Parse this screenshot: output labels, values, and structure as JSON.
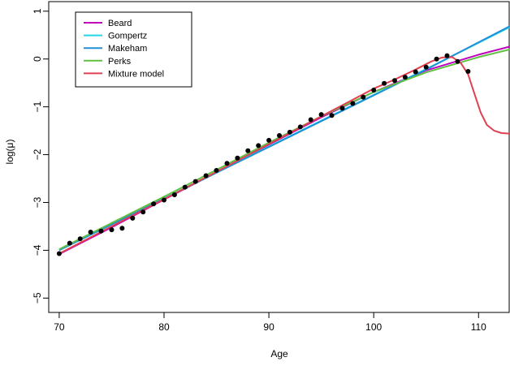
{
  "chart_data": {
    "type": "line",
    "xlabel": "Age",
    "ylabel": "log(μ)",
    "xlim": [
      69,
      113
    ],
    "ylim": [
      -5.3,
      1.2
    ],
    "x_ticks": [
      70,
      80,
      90,
      100,
      110
    ],
    "y_ticks": [
      -5,
      -4,
      -3,
      -2,
      -1,
      0,
      1
    ],
    "legend_position": "top-left",
    "grid": false,
    "observed_points": [
      [
        70,
        -4.07
      ],
      [
        71,
        -3.85
      ],
      [
        72,
        -3.76
      ],
      [
        73,
        -3.62
      ],
      [
        74,
        -3.6
      ],
      [
        75,
        -3.57
      ],
      [
        76,
        -3.54
      ],
      [
        77,
        -3.33
      ],
      [
        78,
        -3.2
      ],
      [
        79,
        -3.03
      ],
      [
        80,
        -2.95
      ],
      [
        81,
        -2.84
      ],
      [
        82,
        -2.68
      ],
      [
        83,
        -2.56
      ],
      [
        84,
        -2.44
      ],
      [
        85,
        -2.33
      ],
      [
        86,
        -2.18
      ],
      [
        87,
        -2.07
      ],
      [
        88,
        -1.92
      ],
      [
        89,
        -1.81
      ],
      [
        90,
        -1.7
      ],
      [
        91,
        -1.6
      ],
      [
        92,
        -1.53
      ],
      [
        93,
        -1.42
      ],
      [
        94,
        -1.27
      ],
      [
        95,
        -1.16
      ],
      [
        96,
        -1.18
      ],
      [
        97,
        -1.03
      ],
      [
        98,
        -0.93
      ],
      [
        99,
        -0.8
      ],
      [
        100,
        -0.65
      ],
      [
        101,
        -0.51
      ],
      [
        102,
        -0.45
      ],
      [
        103,
        -0.38
      ],
      [
        104,
        -0.27
      ],
      [
        105,
        -0.17
      ],
      [
        106,
        0.0
      ],
      [
        107,
        0.07
      ],
      [
        108,
        -0.05
      ],
      [
        109,
        -0.26
      ]
    ],
    "series": [
      {
        "name": "Beard",
        "color": "#c000c0",
        "x": [
          70,
          75,
          80,
          85,
          90,
          95,
          100,
          105,
          110,
          113
        ],
        "y": [
          -4.08,
          -3.52,
          -2.94,
          -2.37,
          -1.79,
          -1.22,
          -0.69,
          -0.24,
          0.09,
          0.26
        ]
      },
      {
        "name": "Gompertz",
        "color": "#20d8e8",
        "x": [
          70,
          75,
          80,
          85,
          90,
          95,
          100,
          105,
          110,
          113
        ],
        "y": [
          -4.0,
          -3.45,
          -2.92,
          -2.37,
          -1.83,
          -1.29,
          -0.75,
          -0.21,
          0.34,
          0.67
        ]
      },
      {
        "name": "Makeham",
        "color": "#2090d8",
        "x": [
          70,
          75,
          80,
          85,
          90,
          95,
          100,
          105,
          110,
          113
        ],
        "y": [
          -4.0,
          -3.46,
          -2.92,
          -2.38,
          -1.84,
          -1.3,
          -0.76,
          -0.22,
          0.35,
          0.69
        ]
      },
      {
        "name": "Perks",
        "color": "#60c040",
        "x": [
          70,
          75,
          80,
          85,
          90,
          95,
          100,
          105,
          110,
          113
        ],
        "y": [
          -3.98,
          -3.43,
          -2.88,
          -2.32,
          -1.75,
          -1.2,
          -0.69,
          -0.28,
          0.04,
          0.2
        ]
      },
      {
        "name": "Mixture model",
        "color": "#e04050",
        "x": [
          70,
          75,
          80,
          85,
          90,
          95,
          100,
          102,
          104,
          105.5,
          106.5,
          107.5,
          108.3,
          109,
          109.6,
          110.2,
          110.8,
          111.5,
          112.2,
          113
        ],
        "y": [
          -4.07,
          -3.5,
          -2.93,
          -2.36,
          -1.78,
          -1.2,
          -0.62,
          -0.43,
          -0.22,
          -0.05,
          0.03,
          0.04,
          -0.08,
          -0.32,
          -0.72,
          -1.12,
          -1.38,
          -1.5,
          -1.55,
          -1.56
        ]
      }
    ]
  }
}
